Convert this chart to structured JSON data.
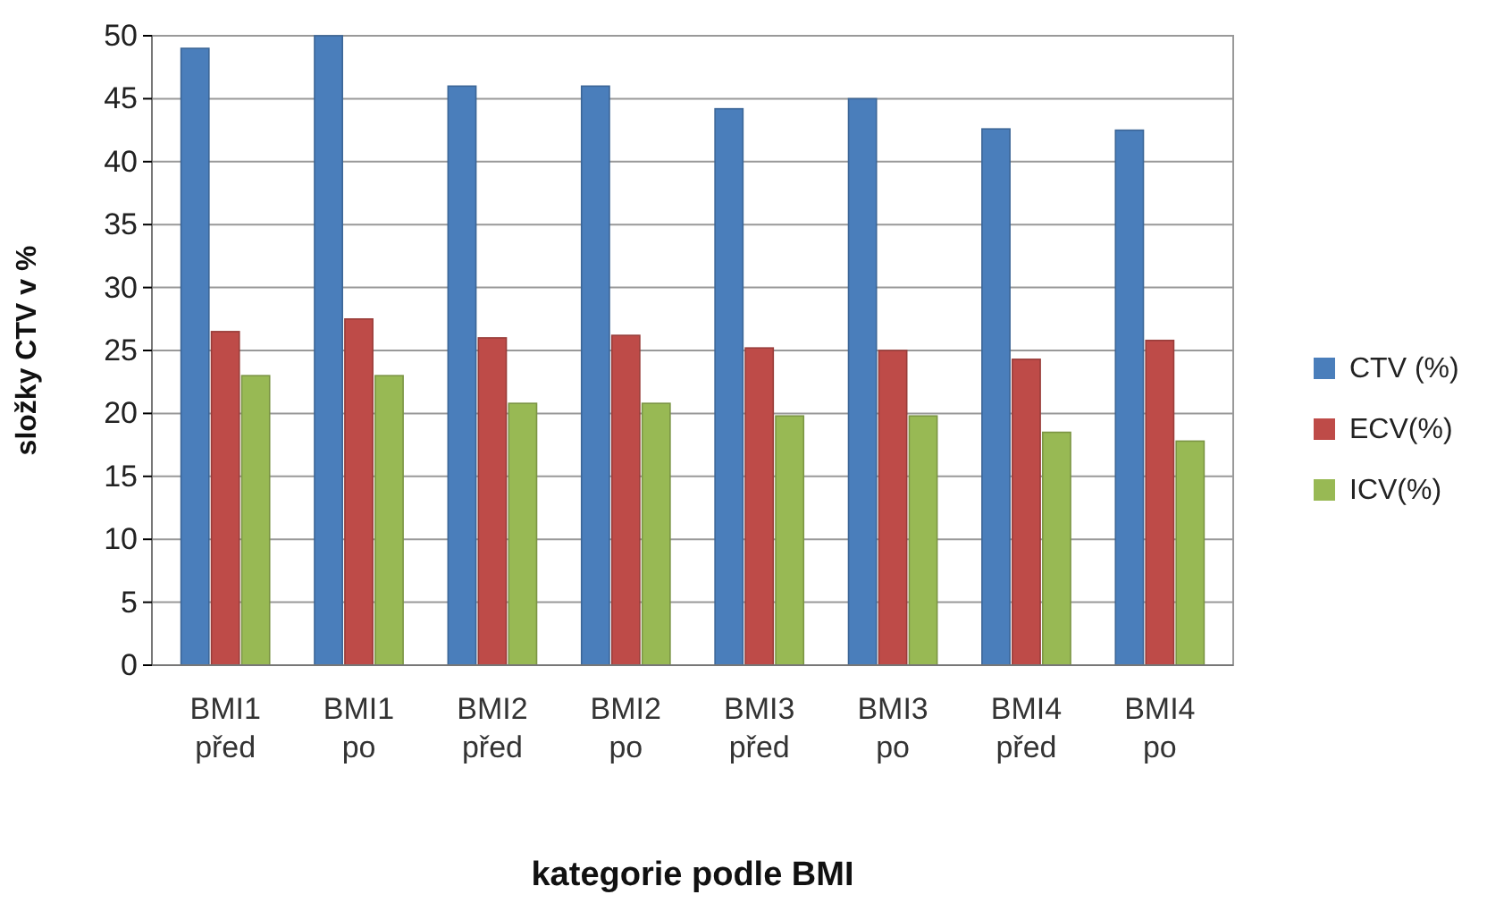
{
  "chart_data": {
    "type": "bar",
    "xlabel": "kategorie podle BMI",
    "ylabel": "složky CTV v %",
    "categories": [
      "BMI1 před",
      "BMI1 po",
      "BMI2 před",
      "BMI2 po",
      "BMI3 před",
      "BMI3 po",
      "BMI4 před",
      "BMI4 po"
    ],
    "series": [
      {
        "name": "CTV (%)",
        "color": "#4a7ebb",
        "values": [
          49,
          50,
          46,
          46,
          44.2,
          45,
          42.6,
          42.5
        ]
      },
      {
        "name": "ECV(%)",
        "color": "#be4b48",
        "values": [
          26.5,
          27.5,
          26,
          26.2,
          25.2,
          25,
          24.3,
          25.8
        ]
      },
      {
        "name": "ICV(%)",
        "color": "#98b954",
        "values": [
          23,
          23,
          20.8,
          20.8,
          19.8,
          19.8,
          18.5,
          17.8
        ]
      }
    ],
    "ylim": [
      0,
      50
    ],
    "yticks": [
      0,
      5,
      10,
      15,
      20,
      25,
      30,
      35,
      40,
      45,
      50
    ],
    "grid": "y",
    "legend": "right"
  }
}
